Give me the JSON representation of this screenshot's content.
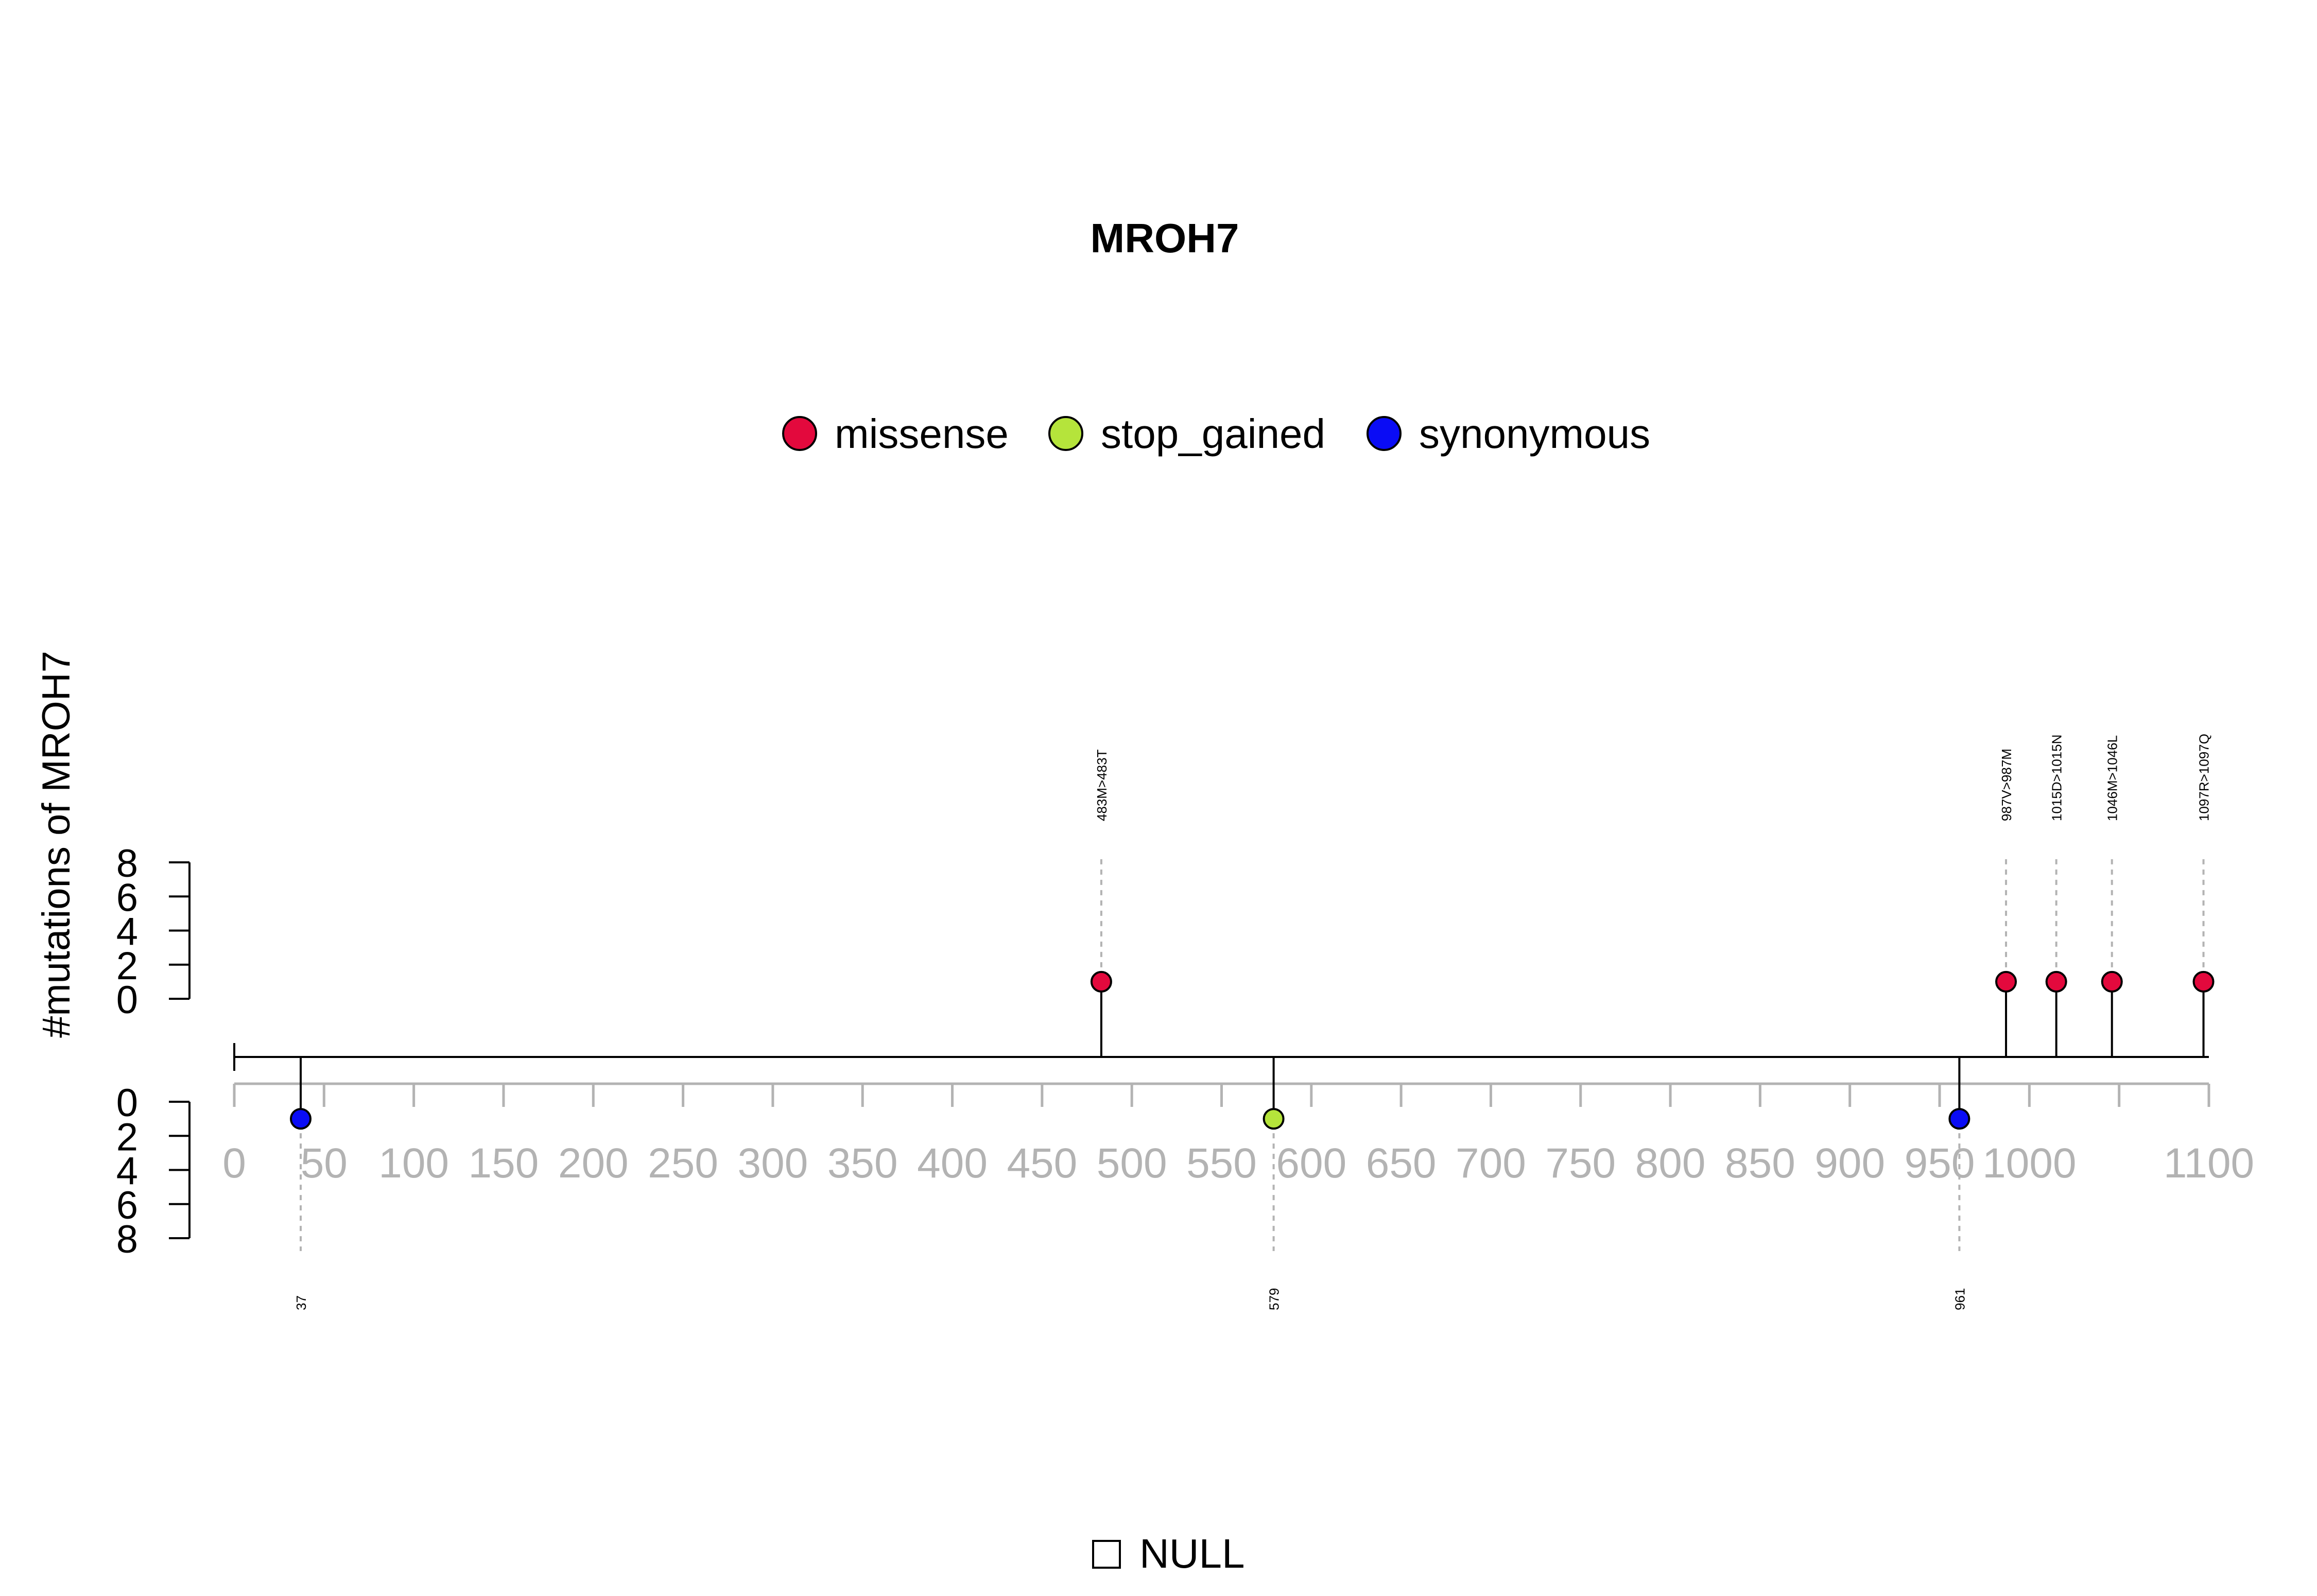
{
  "chart_data": {
    "type": "lollipop",
    "title": "MROH7",
    "ylabel": "#mutations of MROH7",
    "legend": {
      "placement": "top-center",
      "items": [
        {
          "name": "missense",
          "color": "#e3093d"
        },
        {
          "name": "stop_gained",
          "color": "#b5e43b"
        },
        {
          "name": "synonymous",
          "color": "#0a0cf5"
        }
      ]
    },
    "domain_legend": {
      "label": "NULL"
    },
    "x_axis": {
      "range": [
        0,
        1100
      ],
      "ticks": [
        0,
        50,
        100,
        150,
        200,
        250,
        300,
        350,
        400,
        450,
        500,
        550,
        600,
        650,
        700,
        750,
        800,
        850,
        900,
        950,
        1000,
        1100
      ],
      "minor_step": 50
    },
    "y_axis": {
      "ticks": [
        0,
        2,
        4,
        6,
        8
      ],
      "ylim": [
        0,
        8
      ]
    },
    "upper_mutations": [
      {
        "position": 483,
        "label": "483M>483T",
        "count": 1,
        "type": "missense"
      },
      {
        "position": 987,
        "label": "987V>987M",
        "count": 1,
        "type": "missense"
      },
      {
        "position": 1015,
        "label": "1015D>1015N",
        "count": 1,
        "type": "missense"
      },
      {
        "position": 1046,
        "label": "1046M>1046L",
        "count": 1,
        "type": "missense"
      },
      {
        "position": 1097,
        "label": "1097R>1097Q",
        "count": 1,
        "type": "missense"
      }
    ],
    "lower_mutations": [
      {
        "position": 37,
        "label": "37",
        "count": 1,
        "type": "synonymous"
      },
      {
        "position": 579,
        "label": "579",
        "count": 1,
        "type": "stop_gained"
      },
      {
        "position": 961,
        "label": "961",
        "count": 1,
        "type": "synonymous"
      }
    ]
  }
}
